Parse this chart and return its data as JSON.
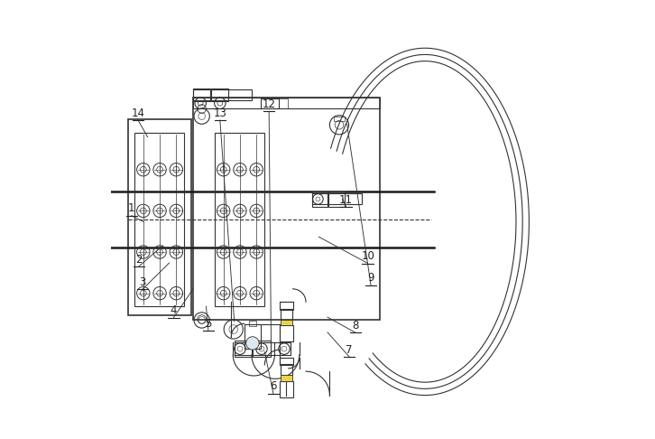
{
  "bg_color": "#ffffff",
  "line_color": "#333333",
  "dark_color": "#1a1a1a",
  "yellow_color": "#e8d44d",
  "label_color": "#222222",
  "figsize": [
    7.26,
    4.86
  ],
  "dpi": 100,
  "labels_info": [
    [
      1,
      0.048,
      0.525,
      0.075,
      0.495
    ],
    [
      2,
      0.065,
      0.408,
      0.12,
      0.44
    ],
    [
      3,
      0.073,
      0.355,
      0.135,
      0.4
    ],
    [
      4,
      0.145,
      0.29,
      0.19,
      0.34
    ],
    [
      5,
      0.225,
      0.26,
      0.22,
      0.3
    ],
    [
      6,
      0.375,
      0.115,
      0.355,
      0.195
    ],
    [
      7,
      0.55,
      0.2,
      0.5,
      0.24
    ],
    [
      8,
      0.565,
      0.255,
      0.5,
      0.275
    ],
    [
      9,
      0.6,
      0.365,
      0.545,
      0.72
    ],
    [
      10,
      0.593,
      0.415,
      0.48,
      0.46
    ],
    [
      11,
      0.543,
      0.545,
      0.535,
      0.547
    ],
    [
      12,
      0.365,
      0.765,
      0.37,
      0.21
    ],
    [
      13,
      0.252,
      0.745,
      0.285,
      0.265
    ],
    [
      14,
      0.063,
      0.745,
      0.085,
      0.69
    ]
  ]
}
